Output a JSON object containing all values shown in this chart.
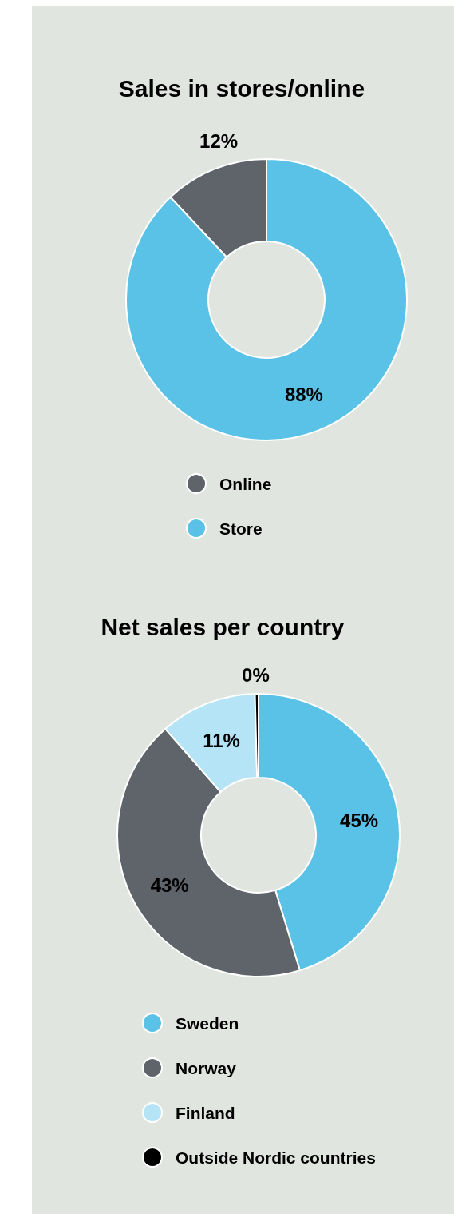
{
  "chart_data": [
    {
      "type": "donut",
      "title": "Sales in stores/online",
      "categories": [
        "Online",
        "Store"
      ],
      "values": [
        12,
        88
      ],
      "colors": [
        "#5f636a",
        "#5bc2e7"
      ],
      "value_labels": [
        "12%",
        "88%"
      ],
      "legend": "bottom"
    },
    {
      "type": "donut",
      "title": "Net sales per country",
      "categories": [
        "Sweden",
        "Norway",
        "Finland",
        "Outside Nordic countries"
      ],
      "values": [
        45,
        43,
        11,
        0.4
      ],
      "colors": [
        "#5bc2e7",
        "#5f636a",
        "#b4e4f6",
        "#000000"
      ],
      "value_labels": [
        "45%",
        "43%",
        "11%",
        "0%"
      ],
      "legend": "bottom"
    }
  ]
}
